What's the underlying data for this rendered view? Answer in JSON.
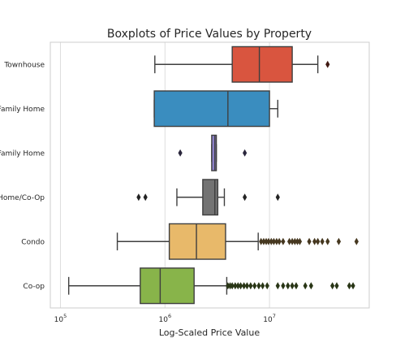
{
  "chart_data": {
    "type": "boxplot",
    "title": "Boxplots of Price Values by Property",
    "xlabel": "Log-Scaled Price Value",
    "ylabel": "",
    "x_scale": "log",
    "xlim": [
      80000,
      90000000
    ],
    "grid": "vertical",
    "x_ticks": [
      {
        "value": 100000,
        "mantissa": "10",
        "exp": "5"
      },
      {
        "value": 1000000,
        "mantissa": "10",
        "exp": "6"
      },
      {
        "value": 10000000,
        "mantissa": "10",
        "exp": "7"
      }
    ],
    "categories": [
      "Townhouse",
      "Family Home",
      "Family Home",
      "Home/Co-Op",
      "Condo",
      "Co-op"
    ],
    "series": [
      {
        "category": "Townhouse",
        "color": "#d9553f",
        "whisker_low": 800000,
        "q1": 4400000,
        "median": 8000000,
        "q3": 16500000,
        "whisker_high": 29000000,
        "outliers": [
          36000000
        ]
      },
      {
        "category": "Family Home",
        "color": "#3a8dbf",
        "whisker_low": 790000,
        "q1": 790000,
        "median": 4000000,
        "q3": 10000000,
        "whisker_high": 12000000,
        "outliers": []
      },
      {
        "category": "Family Home",
        "color": "#8b7fc7",
        "whisker_low": 2800000,
        "q1": 2800000,
        "median": 3000000,
        "q3": 3100000,
        "whisker_high": 3100000,
        "outliers": [
          1400000,
          5800000
        ]
      },
      {
        "category": "Home/Co-Op",
        "color": "#737373",
        "whisker_low": 1300000,
        "q1": 2300000,
        "median": 3000000,
        "q3": 3200000,
        "whisker_high": 3700000,
        "outliers": [
          560000,
          650000,
          5800000,
          12000000
        ]
      },
      {
        "category": "Condo",
        "color": "#e8b96a",
        "whisker_low": 350000,
        "q1": 1100000,
        "median": 2000000,
        "q3": 3800000,
        "whisker_high": 7800000,
        "outliers": [
          8300000,
          8800000,
          9300000,
          9800000,
          10400000,
          11000000,
          11700000,
          12400000,
          13500000,
          15500000,
          16500000,
          17500000,
          18500000,
          19500000,
          24000000,
          27000000,
          29000000,
          32000000,
          36000000,
          46000000,
          68000000
        ]
      },
      {
        "category": "Co-op",
        "color": "#88b44a",
        "whisker_low": 120000,
        "q1": 580000,
        "median": 900000,
        "q3": 1900000,
        "whisker_high": 3900000,
        "outliers": [
          4000000,
          4200000,
          4400000,
          4700000,
          5000000,
          5300000,
          5700000,
          6100000,
          6600000,
          7200000,
          7900000,
          8600000,
          9500000,
          12000000,
          13500000,
          15000000,
          16500000,
          18000000,
          22000000,
          25000000,
          40000000,
          44000000,
          58000000,
          63000000
        ]
      }
    ]
  }
}
